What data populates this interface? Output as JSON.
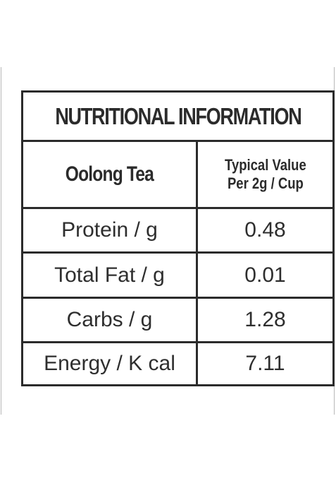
{
  "title": "NUTRITIONAL INFORMATION",
  "header": {
    "product_name": "Oolong Tea",
    "value_heading_line1": "Typical Value",
    "value_heading_line2": "Per 2g / Cup"
  },
  "rows": [
    {
      "label": "Protein / g",
      "value": "0.48"
    },
    {
      "label": "Total Fat / g",
      "value": "0.01"
    },
    {
      "label": "Carbs / g",
      "value": "1.28"
    },
    {
      "label": "Energy / K cal",
      "value": "7.11"
    }
  ]
}
